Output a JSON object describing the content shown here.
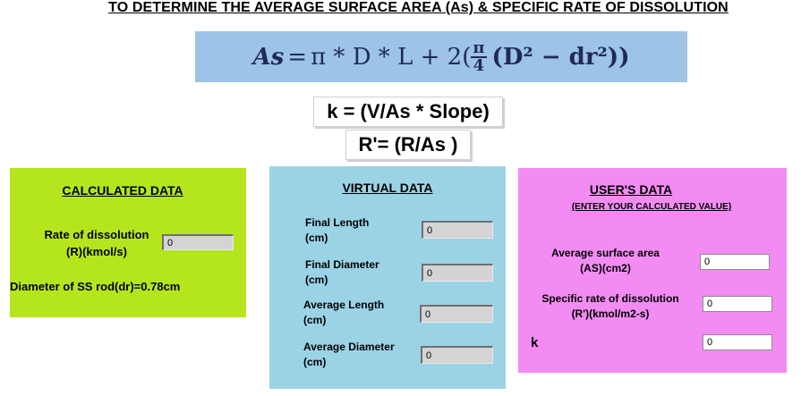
{
  "page_title": "TO DETERMINE THE AVERAGE SURFACE AREA  (As) & SPECIFIC RATE OF DISSOLUTION",
  "formula": {
    "lhs": "As",
    "eq": "=",
    "t1": "π * D * L + 2(",
    "frac_num": "π",
    "frac_den": "4",
    "t2": "(D² − dr²))"
  },
  "equation_k": "k = (V/As * Slope)",
  "equation_r": "R'= (R/As )",
  "calculated": {
    "title": "CALCULATED DATA",
    "rate_label_line1": "Rate of dissolution",
    "rate_label_line2": "(R)(kmol/s)",
    "rate_value": "0",
    "diameter_text": "Diameter of SS rod(dr)=0.78cm"
  },
  "virtual": {
    "title": "VIRTUAL DATA",
    "fields": [
      {
        "line1": "Final Length",
        "line2": "(cm)",
        "value": "0"
      },
      {
        "line1": "Final Diameter",
        "line2": "(cm)",
        "value": "0"
      },
      {
        "line1": "Average Length",
        "line2": "(cm)",
        "value": "0"
      },
      {
        "line1": "Average Diameter",
        "line2": "(cm)",
        "value": "0"
      }
    ]
  },
  "user": {
    "title": "USER'S DATA",
    "subtitle": "(ENTER YOUR CALCULATED  VALUE)",
    "area_line1": "Average surface area",
    "area_line2": "(AS)(cm2)",
    "area_value": "0",
    "rate_line1": "Specific rate of dissolution",
    "rate_line2": "(R')(kmol/m2-s)",
    "rate_value": "0",
    "k_label": "k",
    "k_value": "0"
  },
  "colors": {
    "calculated_bg": "#b5e61d",
    "virtual_bg": "#9bd3e6",
    "user_bg": "#f28cf2",
    "formula_bg": "#9dc3e6"
  }
}
